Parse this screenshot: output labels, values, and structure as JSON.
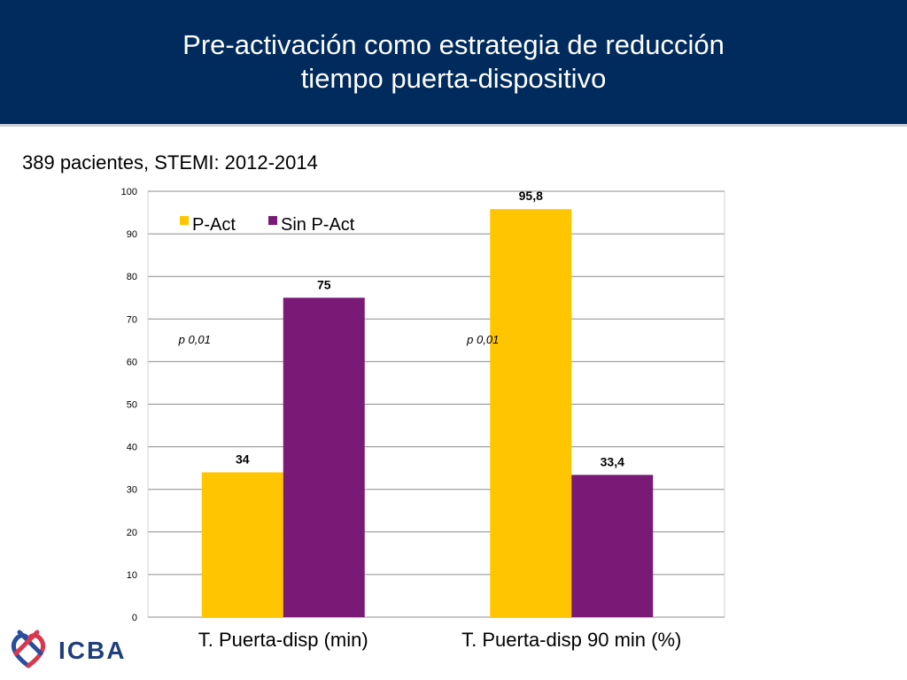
{
  "header": {
    "title_line1": "Pre-activación como estrategia de reducción",
    "title_line2": "tiempo puerta-dispositivo"
  },
  "subtitle": "389 pacientes, STEMI: 2012-2014",
  "logo": {
    "text": "ICBA",
    "icon": "interlocking-hearts-icon"
  },
  "colors": {
    "header_bg": "#002b5c",
    "p_act": "#ffc600",
    "sin_p_act": "#7a1a77",
    "grid": "#8c8c8c"
  },
  "chart_data": {
    "type": "bar",
    "categories": [
      "T. Puerta-disp (min)",
      "T. Puerta-disp 90 min (%)"
    ],
    "series": [
      {
        "name": "P-Act",
        "values": [
          34,
          95.8
        ],
        "labels": [
          "34",
          "95,8"
        ]
      },
      {
        "name": "Sin P-Act",
        "values": [
          75,
          33.4
        ],
        "labels": [
          "75",
          "33,4"
        ]
      }
    ],
    "yticks": [
      "0",
      "10",
      "20",
      "30",
      "40",
      "50",
      "60",
      "70",
      "80",
      "90",
      "100"
    ],
    "ylim": [
      0,
      100
    ],
    "grid": true,
    "legend_position": "top-left",
    "annotations": [
      "p 0,01",
      "p 0,01"
    ]
  }
}
